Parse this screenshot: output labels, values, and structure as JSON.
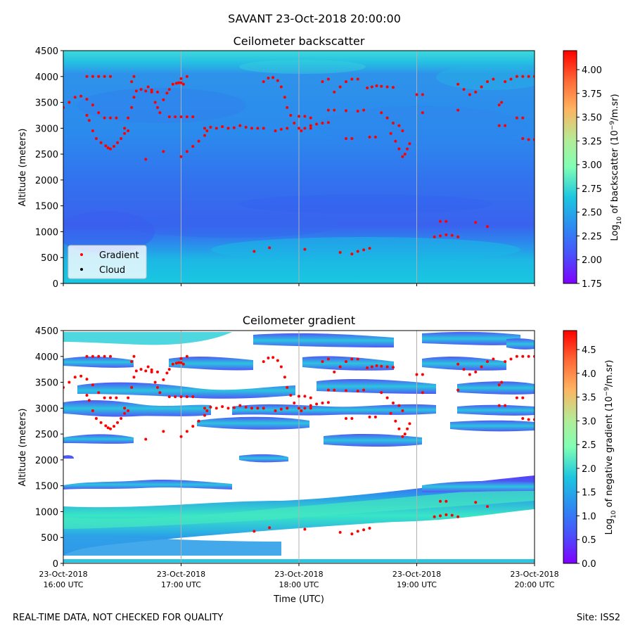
{
  "suptitle": "SAVANT 23-Oct-2018 20:00:00",
  "footer": {
    "left": "REAL-TIME DATA, NOT CHECKED FOR QUALITY",
    "right": "Site: ISS2"
  },
  "colors": {
    "gradient_marker": "#ff0000",
    "cloud_marker": "#000000",
    "grid": "#b0b0b0",
    "background_fill": "#ffffff"
  },
  "chart_data": [
    {
      "type": "heatmap",
      "title": "Ceilometer backscatter",
      "xlabel": "",
      "ylabel": "Altitude (meters)",
      "ylim": [
        0,
        4500
      ],
      "yticks": [
        0,
        500,
        1000,
        1500,
        2000,
        2500,
        3000,
        3500,
        4000,
        4500
      ],
      "xlim_hours_utc": [
        16,
        20
      ],
      "xticks_hours_utc": [
        16,
        17,
        18,
        19,
        20
      ],
      "grid": "vertical",
      "colorscale": "rainbow",
      "colorbar": {
        "label_prefix": "Log",
        "label_sub": "10",
        "label_rest": " of backscatter (10",
        "label_sup": "−9",
        "label_end": "/m.sr)",
        "range": [
          1.75,
          4.2
        ],
        "ticks": [
          "1.75",
          "2.00",
          "2.25",
          "2.50",
          "2.75",
          "3.00",
          "3.25",
          "3.50",
          "3.75",
          "4.00"
        ]
      },
      "legend": {
        "location": "lower-left",
        "entries": [
          {
            "label": "Gradient",
            "color": "#ff0000"
          },
          {
            "label": "Cloud",
            "color": "#000000"
          }
        ]
      }
    },
    {
      "type": "heatmap",
      "title": "Ceilometer gradient",
      "xlabel": "Time (UTC)",
      "ylabel": "Altitude (meters)",
      "ylim": [
        0,
        4500
      ],
      "yticks": [
        0,
        500,
        1000,
        1500,
        2000,
        2500,
        3000,
        3500,
        4000,
        4500
      ],
      "xlim_hours_utc": [
        16,
        20
      ],
      "xticks_hours_utc": [
        16,
        17,
        18,
        19,
        20
      ],
      "xtick_labels": [
        [
          "23-Oct-2018",
          "16:00 UTC"
        ],
        [
          "23-Oct-2018",
          "17:00 UTC"
        ],
        [
          "23-Oct-2018",
          "18:00 UTC"
        ],
        [
          "23-Oct-2018",
          "19:00 UTC"
        ],
        [
          "23-Oct-2018",
          "20:00 UTC"
        ]
      ],
      "grid": "vertical",
      "colorscale": "rainbow",
      "colorbar": {
        "label_prefix": "Log",
        "label_sub": "10",
        "label_rest": " of negative gradient (10",
        "label_sup": "−9",
        "label_end": "/m.sr)",
        "range": [
          0,
          4.9
        ],
        "ticks": [
          "0.0",
          "0.5",
          "1.0",
          "1.5",
          "2.0",
          "2.5",
          "3.0",
          "3.5",
          "4.0",
          "4.5"
        ]
      },
      "approx_gradient_bands_m": [
        [
          100,
          1100
        ],
        [
          1400,
          1600
        ],
        [
          2300,
          2600
        ],
        [
          2750,
          3100
        ],
        [
          3200,
          3500
        ],
        [
          3700,
          3950
        ],
        [
          4200,
          4500
        ]
      ]
    }
  ],
  "gradient_points": {
    "note_units": "x in hours UTC, y in meters",
    "segments": [
      [
        [
          16.0,
          3400
        ],
        [
          16.05,
          3500
        ],
        [
          16.1,
          3600
        ],
        [
          16.15,
          3620
        ],
        [
          16.2,
          3560
        ],
        [
          16.25,
          3450
        ],
        [
          16.3,
          3300
        ]
      ],
      [
        [
          16.2,
          4000
        ],
        [
          16.25,
          4000
        ],
        [
          16.3,
          4000
        ]
      ],
      [
        [
          16.2,
          3250
        ]
      ],
      [
        [
          16.22,
          3150
        ],
        [
          16.25,
          2950
        ],
        [
          16.28,
          2800
        ],
        [
          16.32,
          2720
        ],
        [
          16.36,
          2660
        ],
        [
          16.38,
          2620
        ],
        [
          16.4,
          2600
        ],
        [
          16.43,
          2650
        ],
        [
          16.46,
          2720
        ],
        [
          16.49,
          2800
        ],
        [
          16.52,
          2900
        ],
        [
          16.55,
          2950
        ]
      ],
      [
        [
          16.35,
          3200
        ],
        [
          16.4,
          3200
        ],
        [
          16.45,
          3200
        ]
      ],
      [
        [
          16.35,
          4000
        ],
        [
          16.4,
          4000
        ]
      ],
      [
        [
          16.52,
          3000
        ],
        [
          16.55,
          3200
        ],
        [
          16.58,
          3400
        ],
        [
          16.6,
          3600
        ],
        [
          16.62,
          3720
        ],
        [
          16.66,
          3750
        ],
        [
          16.7,
          3720
        ],
        [
          16.75,
          3740
        ],
        [
          16.8,
          3700
        ]
      ],
      [
        [
          16.58,
          3900
        ],
        [
          16.6,
          4000
        ]
      ],
      [
        [
          16.7,
          2400
        ]
      ],
      [
        [
          16.72,
          3800
        ],
        [
          16.75,
          3700
        ],
        [
          16.78,
          3500
        ],
        [
          16.8,
          3400
        ],
        [
          16.82,
          3300
        ],
        [
          16.85,
          3550
        ],
        [
          16.88,
          3680
        ],
        [
          16.9,
          3750
        ],
        [
          16.93,
          3850
        ],
        [
          16.96,
          3870
        ],
        [
          16.98,
          3880
        ],
        [
          17.0,
          3880
        ],
        [
          17.02,
          3850
        ]
      ],
      [
        [
          17.0,
          3960
        ],
        [
          17.05,
          4000
        ]
      ],
      [
        [
          16.85,
          2550
        ]
      ],
      [
        [
          16.9,
          3220
        ],
        [
          16.95,
          3220
        ],
        [
          17.0,
          3220
        ],
        [
          17.05,
          3220
        ],
        [
          17.1,
          3220
        ]
      ],
      [
        [
          17.0,
          2450
        ],
        [
          17.05,
          2550
        ],
        [
          17.1,
          2650
        ],
        [
          17.15,
          2750
        ],
        [
          17.2,
          2860
        ],
        [
          17.22,
          2950
        ]
      ],
      [
        [
          17.2,
          3000
        ],
        [
          17.25,
          3020
        ],
        [
          17.3,
          3000
        ],
        [
          17.35,
          3030
        ],
        [
          17.4,
          3000
        ],
        [
          17.45,
          3010
        ],
        [
          17.5,
          3050
        ],
        [
          17.55,
          3020
        ],
        [
          17.6,
          3000
        ],
        [
          17.65,
          3000
        ],
        [
          17.7,
          3000
        ]
      ],
      [
        [
          17.62,
          620
        ],
        [
          17.75,
          690
        ],
        [
          18.05,
          660
        ]
      ],
      [
        [
          17.7,
          3900
        ],
        [
          17.74,
          3970
        ],
        [
          17.78,
          3980
        ],
        [
          17.82,
          3920
        ],
        [
          17.85,
          3800
        ],
        [
          17.88,
          3600
        ],
        [
          17.9,
          3400
        ],
        [
          17.93,
          3250
        ],
        [
          17.96,
          3100
        ],
        [
          18.0,
          3000
        ],
        [
          18.02,
          2950
        ]
      ],
      [
        [
          17.8,
          2950
        ],
        [
          17.85,
          2980
        ],
        [
          17.9,
          3000
        ]
      ],
      [
        [
          18.0,
          3230
        ],
        [
          18.05,
          3230
        ],
        [
          18.1,
          3200
        ]
      ],
      [
        [
          18.05,
          3000
        ],
        [
          18.1,
          3050
        ],
        [
          18.15,
          3080
        ],
        [
          18.2,
          3100
        ],
        [
          18.25,
          3110
        ]
      ],
      [
        [
          18.1,
          3000
        ]
      ],
      [
        [
          18.2,
          3900
        ],
        [
          18.25,
          3950
        ],
        [
          18.3,
          3700
        ],
        [
          18.35,
          3800
        ],
        [
          18.4,
          3900
        ],
        [
          18.45,
          3950
        ],
        [
          18.5,
          3950
        ]
      ],
      [
        [
          18.25,
          3350
        ],
        [
          18.3,
          3350
        ]
      ],
      [
        [
          18.35,
          600
        ],
        [
          18.45,
          570
        ],
        [
          18.5,
          620
        ],
        [
          18.55,
          650
        ],
        [
          18.6,
          680
        ]
      ],
      [
        [
          18.4,
          3340
        ],
        [
          18.5,
          3330
        ]
      ],
      [
        [
          18.4,
          2800
        ],
        [
          18.45,
          2800
        ]
      ],
      [
        [
          18.55,
          3350
        ]
      ],
      [
        [
          18.58,
          3780
        ],
        [
          18.62,
          3800
        ],
        [
          18.66,
          3820
        ],
        [
          18.7,
          3810
        ],
        [
          18.75,
          3800
        ],
        [
          18.8,
          3790
        ]
      ],
      [
        [
          18.6,
          2830
        ],
        [
          18.65,
          2830
        ]
      ],
      [
        [
          18.7,
          3300
        ],
        [
          18.75,
          3200
        ],
        [
          18.8,
          3100
        ],
        [
          18.85,
          3050
        ],
        [
          18.88,
          2950
        ]
      ],
      [
        [
          18.78,
          2900
        ],
        [
          18.82,
          2750
        ],
        [
          18.85,
          2600
        ],
        [
          18.88,
          2450
        ]
      ],
      [
        [
          18.9,
          2500
        ],
        [
          18.92,
          2600
        ],
        [
          18.94,
          2700
        ]
      ],
      [
        [
          19.0,
          3650
        ],
        [
          19.05,
          3650
        ]
      ],
      [
        [
          19.05,
          3300
        ]
      ],
      [
        [
          19.15,
          900
        ],
        [
          19.2,
          920
        ],
        [
          19.25,
          940
        ],
        [
          19.3,
          930
        ],
        [
          19.35,
          900
        ]
      ],
      [
        [
          19.2,
          1200
        ],
        [
          19.25,
          1200
        ]
      ],
      [
        [
          19.35,
          3850
        ],
        [
          19.4,
          3750
        ],
        [
          19.45,
          3650
        ],
        [
          19.5,
          3700
        ],
        [
          19.55,
          3800
        ],
        [
          19.6,
          3900
        ],
        [
          19.65,
          3950
        ]
      ],
      [
        [
          19.35,
          3350
        ]
      ],
      [
        [
          19.5,
          1180
        ],
        [
          19.6,
          1100
        ]
      ],
      [
        [
          19.7,
          3450
        ],
        [
          19.72,
          3500
        ]
      ],
      [
        [
          19.75,
          3900
        ],
        [
          19.8,
          3950
        ],
        [
          19.85,
          4000
        ],
        [
          19.9,
          4000
        ],
        [
          19.95,
          4000
        ],
        [
          20.0,
          4000
        ]
      ],
      [
        [
          19.7,
          3050
        ],
        [
          19.75,
          3050
        ]
      ],
      [
        [
          19.85,
          3200
        ],
        [
          19.9,
          3200
        ]
      ],
      [
        [
          19.9,
          2800
        ],
        [
          19.95,
          2780
        ],
        [
          20.0,
          2780
        ]
      ]
    ]
  }
}
